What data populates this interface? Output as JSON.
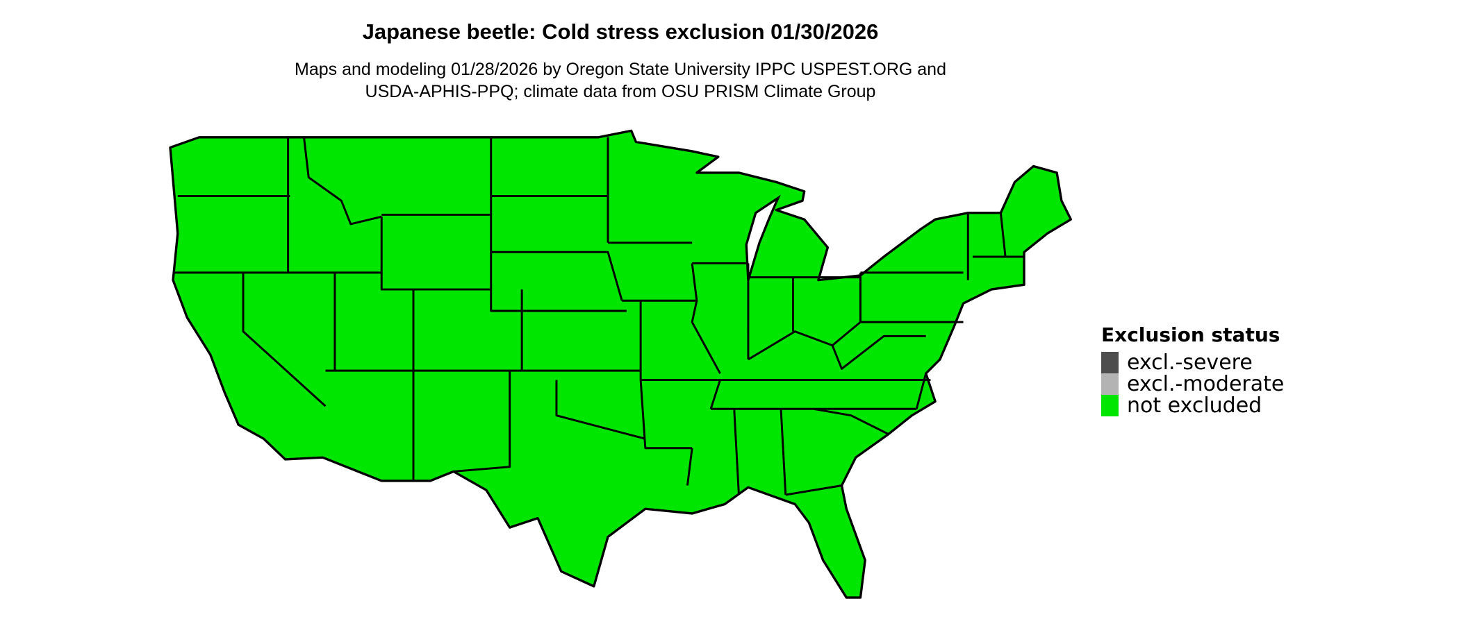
{
  "title": "Japanese beetle: Cold stress exclusion 01/30/2026",
  "subtitle_lines": [
    "Maps and modeling 01/28/2026 by Oregon State University IPPC USPEST.ORG and",
    "USDA-APHIS-PPQ; climate data from OSU PRISM Climate Group"
  ],
  "map": {
    "region": "Contiguous United States",
    "fill_status": "not excluded",
    "fill_color": "#00e600",
    "border_color": "#000000"
  },
  "legend": {
    "title": "Exclusion status",
    "items": [
      {
        "label": "excl.-severe",
        "color": "#4d4d4d"
      },
      {
        "label": "excl.-moderate",
        "color": "#b3b3b3"
      },
      {
        "label": "not excluded",
        "color": "#00e600"
      }
    ]
  }
}
